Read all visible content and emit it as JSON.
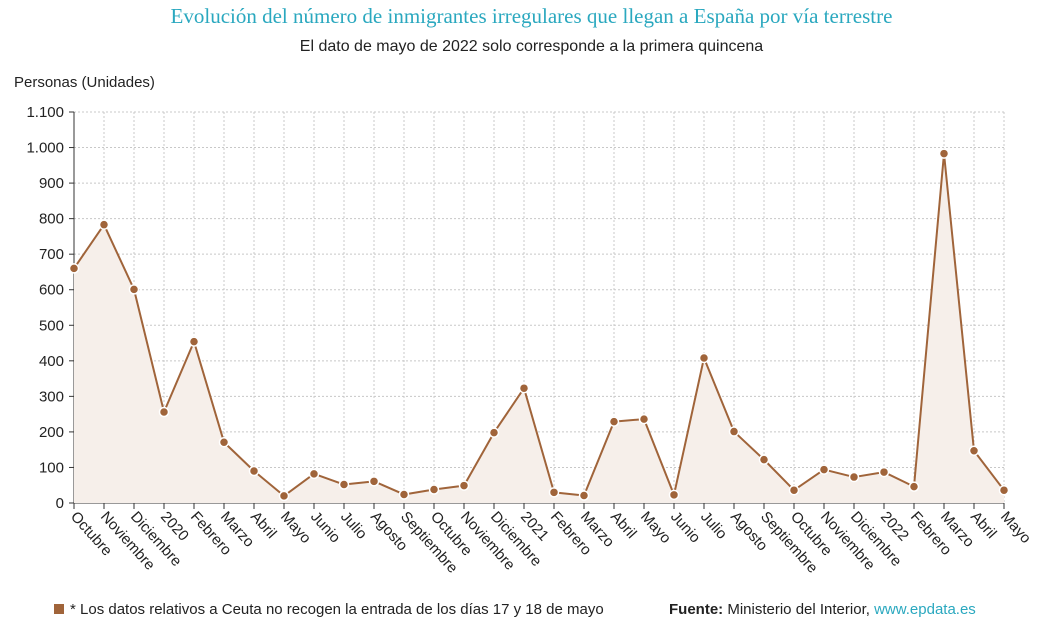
{
  "chart_data": {
    "type": "area",
    "title": "Evolución del número de inmigrantes irregulares que llegan a España por vía terrestre",
    "subtitle": "El dato de mayo de 2022 solo corresponde a la primera quincena",
    "ylabel": "Personas (Unidades)",
    "xlabel": "",
    "ylim": [
      0,
      1100
    ],
    "yticks": [
      0,
      100,
      200,
      300,
      400,
      500,
      600,
      700,
      800,
      900,
      1000,
      1100
    ],
    "ytick_labels": [
      "0",
      "100",
      "200",
      "300",
      "400",
      "500",
      "600",
      "700",
      "800",
      "900",
      "1.000",
      "1.100"
    ],
    "grid": true,
    "categories": [
      "Octubre",
      "Noviembre",
      "Diciembre",
      "2020",
      "Febrero",
      "Marzo",
      "Abril",
      "Mayo",
      "Junio",
      "Julio",
      "Agosto",
      "Septiembre",
      "Octubre",
      "Noviembre",
      "Diciembre",
      "2021",
      "Febrero",
      "Marzo",
      "Abril",
      "Mayo",
      "Junio",
      "Julio",
      "Agosto",
      "Septiembre",
      "Octubre",
      "Noviembre",
      "Diciembre",
      "2022",
      "Febrero",
      "Marzo",
      "Abril",
      "Mayo"
    ],
    "values": [
      660,
      783,
      601,
      256,
      454,
      171,
      90,
      20,
      82,
      52,
      61,
      24,
      38,
      49,
      198,
      323,
      30,
      21,
      229,
      236,
      23,
      408,
      201,
      122,
      36,
      94,
      73,
      87,
      46,
      983,
      147,
      36
    ],
    "colors": {
      "line": "#a0643a",
      "marker": "#a0643a",
      "area": "#f6efea",
      "grid": "#c8c8c8",
      "title": "#2aa8bf"
    }
  },
  "footer": {
    "note": "* Los datos relativos a Ceuta no recogen la entrada de los días 17 y 18 de mayo",
    "source_label": "Fuente:",
    "source_text": "Ministerio del Interior,",
    "source_link": "www.epdata.es"
  }
}
